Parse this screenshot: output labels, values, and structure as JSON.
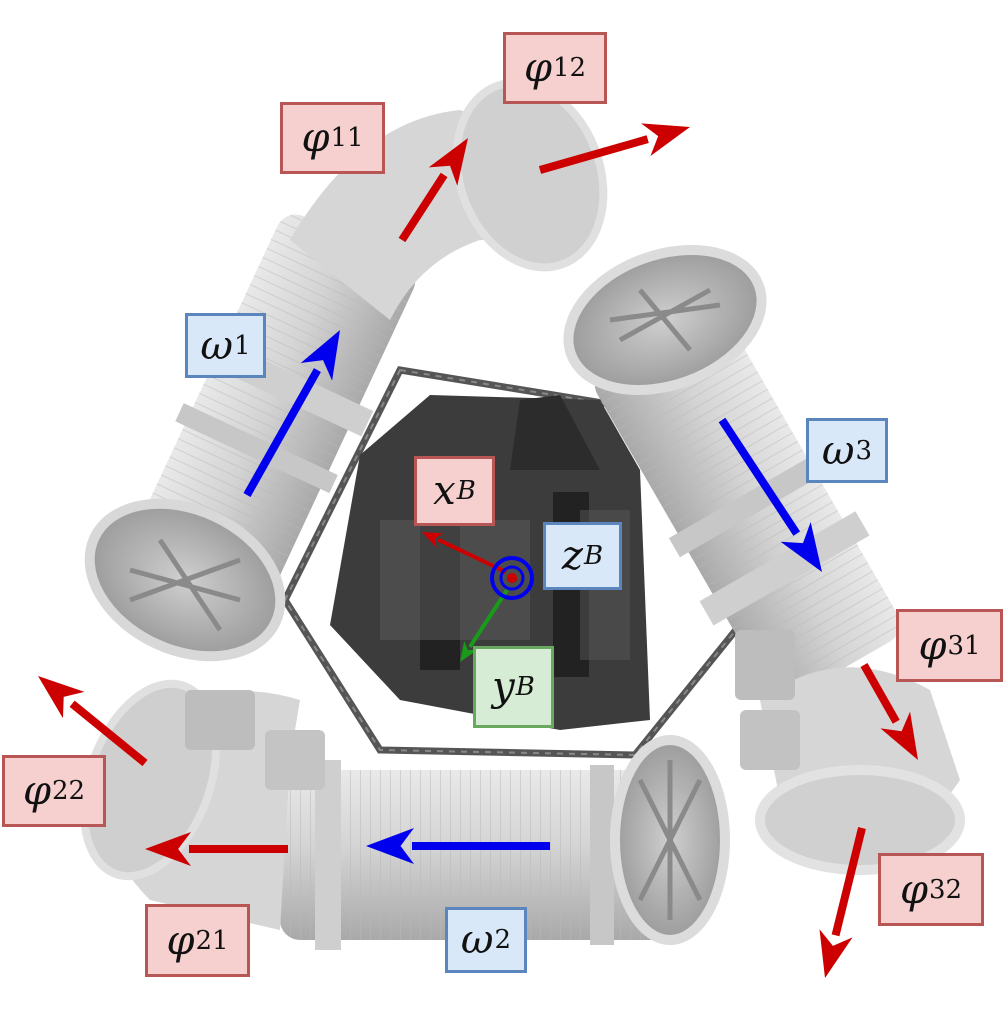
{
  "labels": {
    "phi11": {
      "sym": "φ",
      "sub": "11"
    },
    "phi12": {
      "sym": "φ",
      "sub": "12"
    },
    "omega1": {
      "sym": "ω",
      "sub": "1"
    },
    "omega3": {
      "sym": "ω",
      "sub": "3"
    },
    "xB": {
      "sym": "x",
      "sub": "B"
    },
    "zB": {
      "sym": "z",
      "sub": "B"
    },
    "yB": {
      "sym": "y",
      "sub": "B"
    },
    "phi31": {
      "sym": "φ",
      "sub": "31"
    },
    "phi22": {
      "sym": "φ",
      "sub": "22"
    },
    "phi21": {
      "sym": "φ",
      "sub": "21"
    },
    "omega2": {
      "sym": "ω",
      "sub": "2"
    },
    "phi32": {
      "sym": "φ",
      "sub": "32"
    }
  },
  "colors": {
    "arrow_red": "#cc0000",
    "arrow_blue": "#0000ee",
    "arrow_green": "#1a9a1a",
    "label_red_fill": "#f6cfcf",
    "label_blue_fill": "#d9e8f8",
    "label_green_fill": "#d6ecd4"
  }
}
